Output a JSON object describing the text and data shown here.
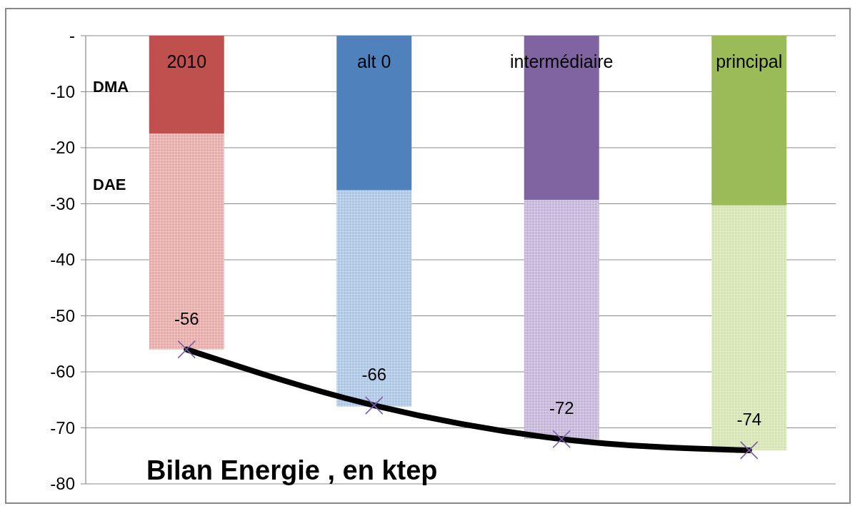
{
  "chart_data": {
    "type": "bar",
    "title": "Bilan Energie , en ktep",
    "stacked": true,
    "categories": [
      "2010",
      "alt 0",
      "intermédiaire",
      "principal"
    ],
    "series": [
      {
        "name": "DMA",
        "colors": [
          "#c0504d",
          "#4f81bd",
          "#8064a2",
          "#9bbb59"
        ],
        "values": [
          -17.5,
          -27.6,
          -29.3,
          -30.3
        ]
      },
      {
        "name": "DAE",
        "colors": [
          "#e9a8a6",
          "#a9c4e6",
          "#c3b3d8",
          "#d3e4ac"
        ],
        "values": [
          -38.5,
          -38.6,
          -42.7,
          -43.7
        ]
      },
      {
        "type": "line",
        "color": "#000000",
        "marker": "cross",
        "values": [
          -56,
          -66,
          -72,
          -74
        ],
        "value_labels": [
          "-56",
          "-66",
          "-72",
          "-74"
        ]
      }
    ],
    "ylim": [
      -80,
      0
    ],
    "yticks": [
      {
        "value": 0,
        "label": "-"
      },
      -10,
      -20,
      -30,
      -40,
      -50,
      -60,
      -70,
      -80
    ],
    "grid": "y"
  }
}
